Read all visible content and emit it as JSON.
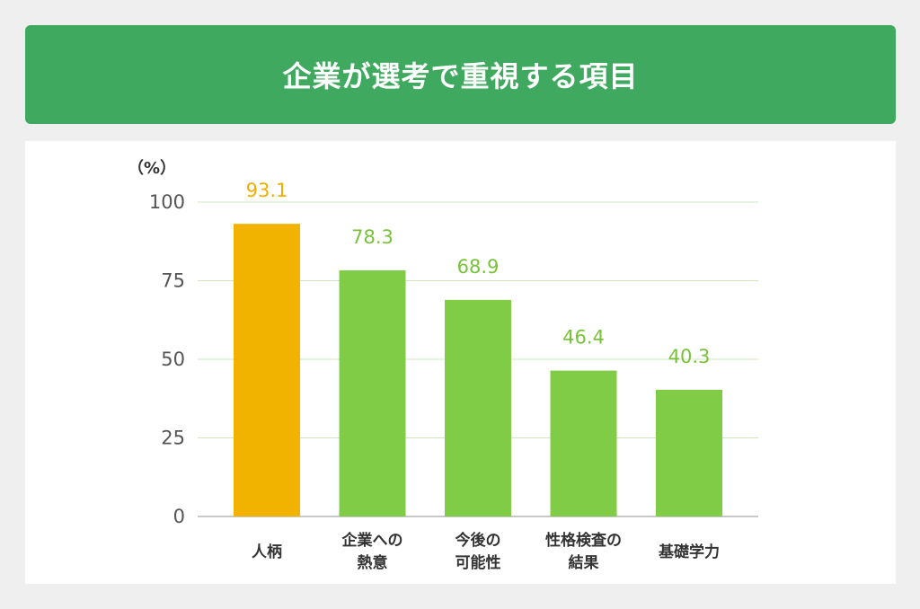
{
  "title": "企業が選考で重視する項目",
  "colors": {
    "banner": "#3fa95f",
    "highlight": "#f2b200",
    "bar": "#80cc46",
    "label_green": "#78c23a",
    "label_orange": "#f0ae00",
    "grid": "#cfe6bf",
    "axis_text": "#555555"
  },
  "chart_data": {
    "type": "bar",
    "unit_label": "（%）",
    "categories": [
      [
        "人柄"
      ],
      [
        "企業への",
        "熱意"
      ],
      [
        "今後の",
        "可能性"
      ],
      [
        "性格検査の",
        "結果"
      ],
      [
        "基礎学力"
      ]
    ],
    "values": [
      93.1,
      78.3,
      68.9,
      46.4,
      40.3
    ],
    "value_labels": [
      "93.1",
      "78.3",
      "68.9",
      "46.4",
      "40.3"
    ],
    "highlight_index": 0,
    "ylim": [
      0,
      100
    ],
    "yticks": [
      0,
      25,
      50,
      75,
      100
    ],
    "grid": true
  }
}
